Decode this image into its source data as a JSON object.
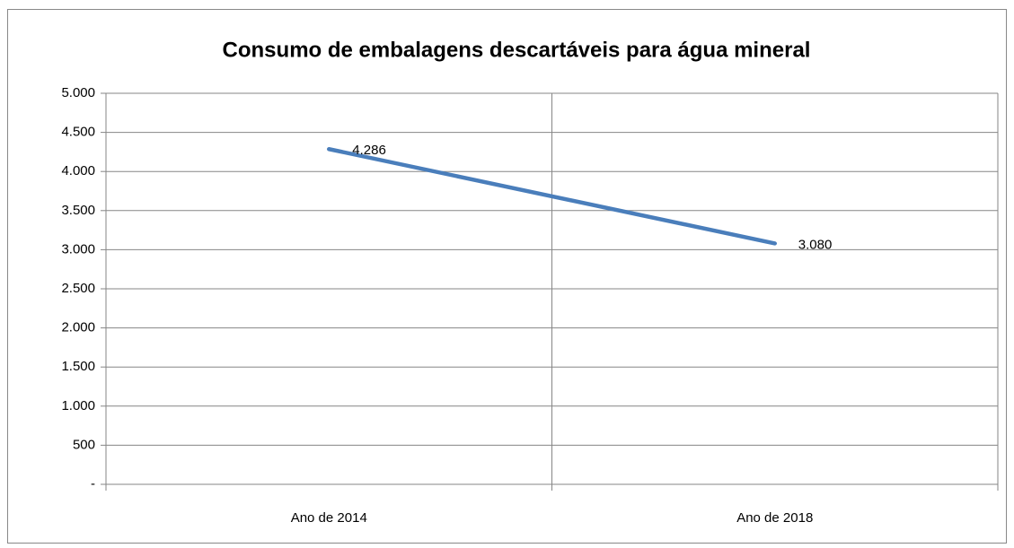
{
  "chart_data": {
    "type": "line",
    "title": "Consumo de embalagens descartáveis para água mineral",
    "categories": [
      "Ano de 2014",
      "Ano de 2018"
    ],
    "values": [
      4286,
      3080
    ],
    "value_labels": [
      "4.286",
      "3.080"
    ],
    "color": "#4a7ebb",
    "ylim": [
      0,
      5000
    ],
    "yticks": [
      {
        "value": 0,
        "label": "-"
      },
      500,
      {
        "value": 1000,
        "label": "1.000"
      },
      {
        "value": 1500,
        "label": "1.500"
      },
      {
        "value": 2000,
        "label": "2.000"
      },
      {
        "value": 2500,
        "label": "2.500"
      },
      {
        "value": 3000,
        "label": "3.000"
      },
      {
        "value": 3500,
        "label": "3.500"
      },
      {
        "value": 4000,
        "label": "4.000"
      },
      {
        "value": 4500,
        "label": "4.500"
      },
      {
        "value": 5000,
        "label": "5.000"
      }
    ],
    "grid": true
  }
}
